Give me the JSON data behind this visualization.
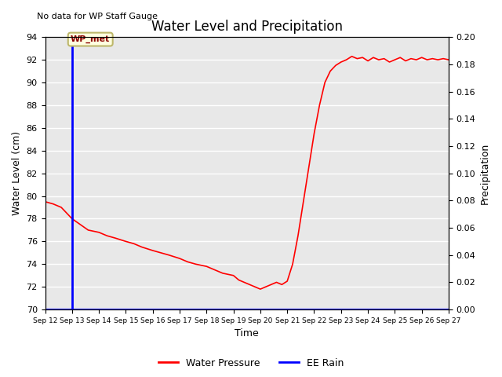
{
  "title": "Water Level and Precipitation",
  "no_data_text": "No data for WP Staff Gauge",
  "xlabel": "Time",
  "ylabel_left": "Water Level (cm)",
  "ylabel_right": "Precipitation",
  "ylim_left": [
    70,
    94
  ],
  "ylim_right": [
    0.0,
    0.2
  ],
  "x_tick_labels": [
    "Sep 12",
    "Sep 13",
    "Sep 14",
    "Sep 15",
    "Sep 16",
    "Sep 17",
    "Sep 18",
    "Sep 19",
    "Sep 20",
    "Sep 21",
    "Sep 22",
    "Sep 23",
    "Sep 24",
    "Sep 25",
    "Sep 26",
    "Sep 27"
  ],
  "vline_x": 1,
  "vline_color": "blue",
  "vline_label": "WP_met",
  "water_pressure_color": "red",
  "water_pressure_label": "Water Pressure",
  "ee_rain_label": "EE Rain",
  "ee_rain_color": "blue",
  "background_color": "#e8e8e8",
  "yticks_left": [
    70,
    72,
    74,
    76,
    78,
    80,
    82,
    84,
    86,
    88,
    90,
    92,
    94
  ],
  "yticks_right": [
    0.0,
    0.02,
    0.04,
    0.06,
    0.08,
    0.1,
    0.12,
    0.14,
    0.16,
    0.18,
    0.2
  ],
  "water_level_x": [
    0,
    0.3,
    0.6,
    1.0,
    1.3,
    1.6,
    2.0,
    2.3,
    2.6,
    3.0,
    3.3,
    3.6,
    4.0,
    4.3,
    4.6,
    5.0,
    5.3,
    5.6,
    6.0,
    6.3,
    6.6,
    7.0,
    7.1,
    7.2,
    7.4,
    7.6,
    7.8,
    8.0,
    8.2,
    8.4,
    8.6,
    8.8,
    9.0,
    9.2,
    9.4,
    9.6,
    9.8,
    10.0,
    10.2,
    10.4,
    10.6,
    10.8,
    11.0,
    11.2,
    11.4,
    11.6,
    11.8,
    12.0,
    12.2,
    12.4,
    12.6,
    12.8,
    13.0,
    13.2,
    13.4,
    13.6,
    13.8,
    14.0,
    14.2,
    14.4,
    14.6,
    14.8,
    15.0
  ],
  "water_level_y": [
    79.5,
    79.3,
    79.0,
    78.0,
    77.5,
    77.0,
    76.8,
    76.5,
    76.3,
    76.0,
    75.8,
    75.5,
    75.2,
    75.0,
    74.8,
    74.5,
    74.2,
    74.0,
    73.8,
    73.5,
    73.2,
    73.0,
    72.8,
    72.6,
    72.4,
    72.2,
    72.0,
    71.8,
    72.0,
    72.2,
    72.4,
    72.2,
    72.5,
    74.0,
    76.5,
    79.5,
    82.5,
    85.5,
    88.0,
    90.0,
    91.0,
    91.5,
    91.8,
    92.0,
    92.3,
    92.1,
    92.2,
    91.9,
    92.2,
    92.0,
    92.1,
    91.8,
    92.0,
    92.2,
    91.9,
    92.1,
    92.0,
    92.2,
    92.0,
    92.1,
    92.0,
    92.1,
    92.0
  ]
}
